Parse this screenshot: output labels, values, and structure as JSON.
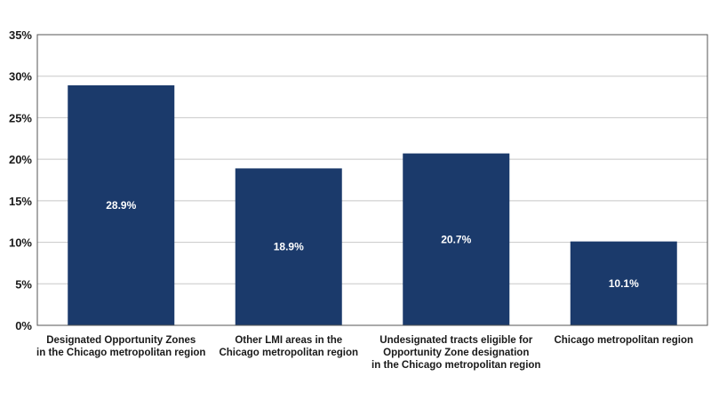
{
  "chart_data": {
    "type": "bar",
    "title": "",
    "xlabel": "",
    "ylabel": "",
    "categories": [
      [
        "Designated Opportunity Zones",
        "in the Chicago metropolitan region"
      ],
      [
        "Other LMI areas in the",
        "Chicago metropolitan region"
      ],
      [
        "Undesignated tracts eligible for",
        "Opportunity Zone designation",
        "in the Chicago metropolitan region"
      ],
      [
        "Chicago metropolitan region"
      ]
    ],
    "values": [
      28.9,
      18.9,
      20.7,
      10.1
    ],
    "data_labels": [
      "28.9%",
      "18.9%",
      "20.7%",
      "10.1%"
    ],
    "ylim": [
      0,
      35
    ],
    "yticks": [
      0,
      5,
      10,
      15,
      20,
      25,
      30,
      35
    ],
    "ytick_labels": [
      "0%",
      "5%",
      "10%",
      "15%",
      "20%",
      "25%",
      "30%",
      "35%"
    ],
    "grid": true,
    "legend": "none",
    "bar_color": "#1b3a6b",
    "grid_color": "#c8c8c8",
    "axis_color": "#555555"
  }
}
